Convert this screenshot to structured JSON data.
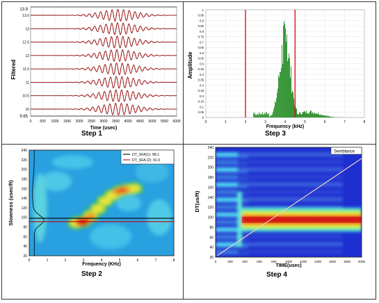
{
  "panels": {
    "step1": {
      "caption": "Step 1",
      "ylabel": "Filtered",
      "xlabel": "Time (usec)",
      "y_top": "13.9",
      "y_bottom": "9.65",
      "trace_labels": [
        "13.6",
        "13",
        "12.5",
        "12",
        "11.5",
        "11",
        "10.5",
        "10"
      ],
      "x_ticks": [
        "0",
        "500",
        "1000",
        "1500",
        "2000",
        "2500",
        "3000",
        "3500",
        "4000",
        "4500",
        "5000",
        "5500",
        "6000"
      ],
      "wave_color": "#8b0000"
    },
    "step2": {
      "caption": "Step 2",
      "ylabel": "Slowness (usec/ft)",
      "xlabel": "Frequency (KHz)",
      "y_ticks": [
        "240",
        "220",
        "200",
        "180",
        "160",
        "140",
        "120",
        "100",
        "80",
        "60",
        "40",
        "20"
      ],
      "x_ticks": [
        "0",
        "1",
        "2",
        "3",
        "4",
        "5",
        "6",
        "7",
        "8"
      ],
      "legend": [
        {
          "label": "DT_SFA(1): 98.1",
          "color": "#000000"
        },
        {
          "label": "DT_SFA (2): 91.0",
          "color": "#cc0000"
        }
      ]
    },
    "step3": {
      "caption": "Step 3",
      "ylabel": "Amplitude",
      "xlabel": "Frequency (kHz)",
      "y_ticks": [
        "1",
        "0.95",
        "0.9",
        "0.85",
        "0.8",
        "0.75",
        "0.7",
        "0.65",
        "0.6",
        "0.55",
        "0.5",
        "0.45",
        "0.4",
        "0.35",
        "0.3",
        "0.25",
        "0.2",
        "0.15",
        "0.1",
        "0.05",
        "0"
      ],
      "x_ticks": [
        "0",
        "1",
        "2",
        "3",
        "4",
        "5",
        "6",
        "7",
        "8"
      ],
      "bar_color": "#228b22",
      "window_color": "#dd0000",
      "window_khz": [
        2.0,
        4.5
      ]
    },
    "step4": {
      "caption": "Step 4",
      "ylabel": "DT(us/ft)",
      "xlabel": "TIME(usec)",
      "legend_label": "Semblance",
      "y_ticks": [
        "240",
        "220",
        "200",
        "180",
        "160",
        "140",
        "120",
        "100",
        "80",
        "60",
        "40",
        "20"
      ],
      "x_ticks": [
        "0",
        "200",
        "400",
        "600",
        "800",
        "1000",
        "1200",
        "1400",
        "1600",
        "1800",
        "2000"
      ]
    }
  },
  "chart_data": [
    {
      "type": "line",
      "title": "Step 1",
      "xlabel": "Time (usec)",
      "ylabel": "Filtered",
      "xlim": [
        0,
        6000
      ],
      "series_labels": [
        "13.6",
        "13",
        "12.5",
        "12",
        "11.5",
        "11",
        "10.5",
        "10"
      ],
      "wave_center_usec": 3600,
      "wave_halfwidth_usec": 1500
    },
    {
      "type": "heatmap",
      "title": "Step 2",
      "xlabel": "Frequency (KHz)",
      "ylabel": "Slowness (usec/ft)",
      "xlim": [
        0,
        8
      ],
      "ylim": [
        20,
        240
      ],
      "lines": [
        {
          "name": "DT_SFA(1): 98.1",
          "value": 98.1
        },
        {
          "name": "DT_SFA (2): 91.0",
          "value": 91.0
        }
      ]
    },
    {
      "type": "bar",
      "title": "Step 3",
      "xlabel": "Frequency (kHz)",
      "ylabel": "Amplitude",
      "xlim": [
        0,
        8
      ],
      "ylim": [
        0,
        1
      ],
      "peak_khz": 4.0,
      "peak_amplitude": 0.9,
      "filter_window_khz": [
        2.0,
        4.5
      ]
    },
    {
      "type": "heatmap",
      "title": "Step 4",
      "xlabel": "TIME(usec)",
      "ylabel": "DT(us/ft)",
      "xlim": [
        0,
        2000
      ],
      "ylim": [
        20,
        240
      ],
      "legend": "Semblance",
      "band_center_dt": 95
    }
  ]
}
